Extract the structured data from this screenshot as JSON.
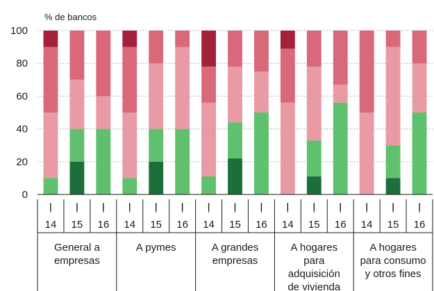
{
  "chart_data": {
    "type": "bar",
    "stacked": true,
    "unit_label": "% de bancos",
    "ylim": [
      0,
      100
    ],
    "yticks": [
      0,
      20,
      40,
      60,
      80,
      100
    ],
    "groups": [
      {
        "label": [
          "General a",
          "empresas"
        ],
        "bars": [
          {
            "period": "I",
            "year": "14",
            "values": [
              0,
              10,
              40,
              40,
              10
            ]
          },
          {
            "period": "I",
            "year": "15",
            "values": [
              20,
              20,
              30,
              30,
              0
            ]
          },
          {
            "period": "I",
            "year": "16",
            "values": [
              0,
              40,
              20,
              40,
              0
            ]
          }
        ]
      },
      {
        "label": [
          "A pymes"
        ],
        "bars": [
          {
            "period": "I",
            "year": "14",
            "values": [
              0,
              10,
              40,
              40,
              10
            ]
          },
          {
            "period": "I",
            "year": "15",
            "values": [
              20,
              20,
              40,
              20,
              0
            ]
          },
          {
            "period": "I",
            "year": "16",
            "values": [
              0,
              40,
              50,
              10,
              0
            ]
          }
        ]
      },
      {
        "label": [
          "A grandes",
          "empresas"
        ],
        "bars": [
          {
            "period": "I",
            "year": "14",
            "values": [
              0,
              11,
              45,
              22,
              22
            ]
          },
          {
            "period": "I",
            "year": "15",
            "values": [
              22,
              22,
              34,
              22,
              0
            ]
          },
          {
            "period": "I",
            "year": "16",
            "values": [
              0,
              50,
              25,
              25,
              0
            ]
          }
        ]
      },
      {
        "label": [
          "A hogares",
          "para",
          "adquisición",
          "de vivienda"
        ],
        "bars": [
          {
            "period": "I",
            "year": "14",
            "values": [
              0,
              0,
              56,
              33,
              11
            ]
          },
          {
            "period": "I",
            "year": "15",
            "values": [
              11,
              22,
              45,
              22,
              0
            ]
          },
          {
            "period": "I",
            "year": "16",
            "values": [
              0,
              56,
              11,
              33,
              0
            ]
          }
        ]
      },
      {
        "label": [
          "A hogares",
          "para consumo",
          "y otros fines"
        ],
        "bars": [
          {
            "period": "I",
            "year": "14",
            "values": [
              0,
              0,
              50,
              50,
              0
            ]
          },
          {
            "period": "I",
            "year": "15",
            "values": [
              10,
              20,
              60,
              10,
              0
            ]
          },
          {
            "period": "I",
            "year": "16",
            "values": [
              0,
              50,
              30,
              20,
              0
            ]
          }
        ]
      }
    ],
    "segment_colors": [
      "#1e6e3c",
      "#5fc06e",
      "#e89aa5",
      "#d9687a",
      "#a3213a"
    ],
    "grid": true,
    "legend": "none"
  }
}
